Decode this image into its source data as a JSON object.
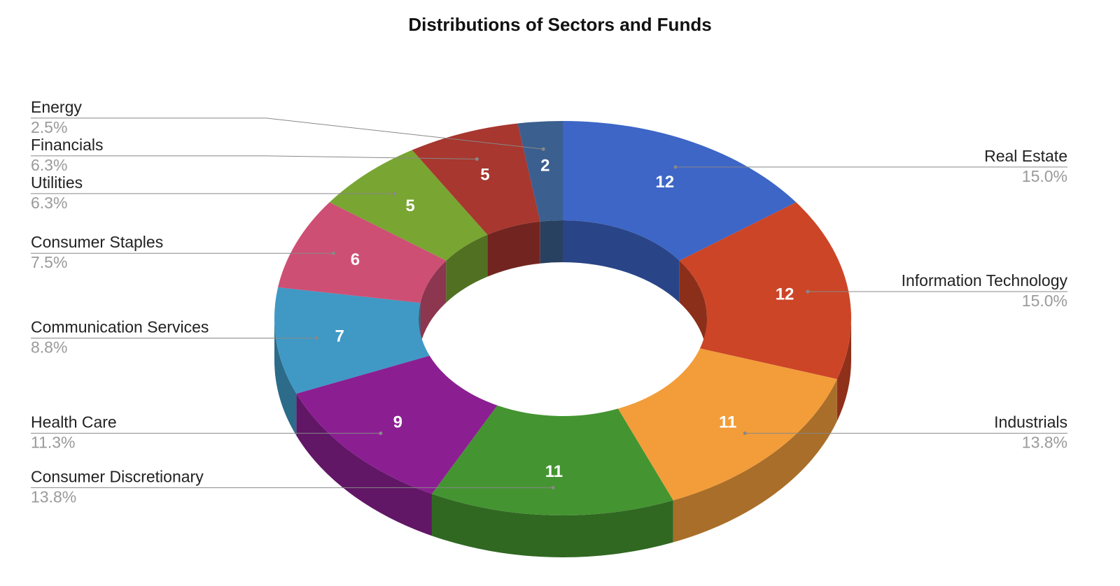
{
  "chart_data": {
    "type": "pie",
    "style": "3d-donut",
    "title": "Distributions of Sectors and Funds",
    "legend_placement": "callout-labels",
    "slices": [
      {
        "label": "Real Estate",
        "value": 12,
        "percent": "15.0%",
        "color": "#3d66c6"
      },
      {
        "label": "Information Technology",
        "value": 12,
        "percent": "15.0%",
        "color": "#cc4527"
      },
      {
        "label": "Industrials",
        "value": 11,
        "percent": "13.8%",
        "color": "#f29d3a"
      },
      {
        "label": "Consumer Discretionary",
        "value": 11,
        "percent": "13.8%",
        "color": "#449431"
      },
      {
        "label": "Health Care",
        "value": 9,
        "percent": "11.3%",
        "color": "#8b1f92"
      },
      {
        "label": "Communication Services",
        "value": 7,
        "percent": "8.8%",
        "color": "#3f99c4"
      },
      {
        "label": "Consumer Staples",
        "value": 6,
        "percent": "7.5%",
        "color": "#ce4f74"
      },
      {
        "label": "Utilities",
        "value": 5,
        "percent": "6.3%",
        "color": "#79a532"
      },
      {
        "label": "Financials",
        "value": 5,
        "percent": "6.3%",
        "color": "#a7372f"
      },
      {
        "label": "Energy",
        "value": 2,
        "percent": "2.5%",
        "color": "#3b5f8f"
      }
    ]
  }
}
